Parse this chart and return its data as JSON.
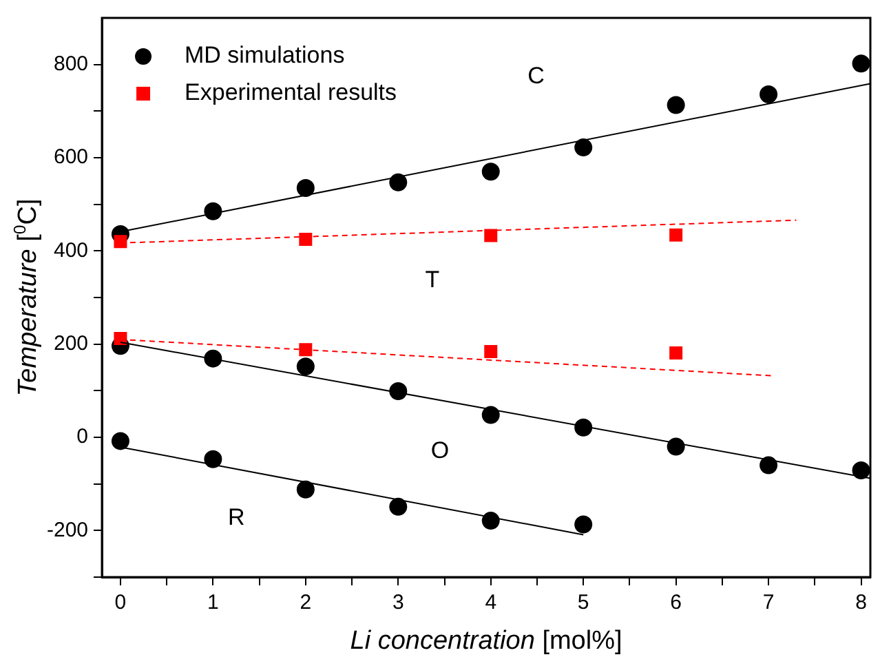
{
  "chart_data": {
    "type": "scatter",
    "xlabel": "Li concentration [mol%]",
    "ylabel": "Temperature [$^{0}$C]",
    "xlim": [
      -0.2,
      8.1
    ],
    "ylim": [
      -300,
      900
    ],
    "xticks": [
      0,
      {
        "value": 0.5,
        "label": null
      },
      1,
      {
        "value": 1.5,
        "label": null
      },
      2,
      {
        "value": 2.5,
        "label": null
      },
      3,
      {
        "value": 3.5,
        "label": null
      },
      4,
      {
        "value": 4.5,
        "label": null
      },
      5,
      {
        "value": 5.5,
        "label": null
      },
      6,
      {
        "value": 6.5,
        "label": null
      },
      7,
      {
        "value": 7.5,
        "label": null
      },
      8
    ],
    "yticks": [
      {
        "value": -300,
        "label": null
      },
      -200,
      {
        "value": -100,
        "label": null
      },
      0,
      {
        "value": 100,
        "label": null
      },
      200,
      {
        "value": 300,
        "label": null
      },
      400,
      {
        "value": 500,
        "label": null
      },
      600,
      {
        "value": 700,
        "label": null
      },
      800
    ],
    "grid": false,
    "legend": "top left",
    "series": [
      {
        "name": "MD simulations",
        "marker": "circle",
        "color": "#000000",
        "x": [
          0,
          1,
          2,
          3,
          4,
          5,
          6,
          7,
          8,
          0,
          1,
          2,
          3,
          4,
          5,
          6,
          7,
          8,
          0,
          1,
          2,
          3,
          4,
          5
        ],
        "values": [
          436,
          485,
          535,
          547,
          570,
          622,
          713,
          736,
          802,
          196,
          169,
          152,
          99,
          48,
          21,
          -20,
          -60,
          -71,
          -8,
          -47,
          -112,
          -149,
          -179,
          -187
        ]
      },
      {
        "name": "Experimental results",
        "marker": "square",
        "color": "#ff0000",
        "x": [
          0,
          2,
          4,
          6,
          0,
          2,
          4,
          6
        ],
        "values": [
          420,
          425,
          433,
          434,
          212,
          188,
          184,
          181
        ]
      },
      {
        "type": "line",
        "marker": "none",
        "line_style": "solid",
        "color": "#000000",
        "x": [
          0,
          8.1
        ],
        "values": [
          441,
          759
        ]
      },
      {
        "type": "line",
        "marker": "none",
        "line_style": "dashed",
        "color": "#ff0000",
        "x": [
          0,
          7.3
        ],
        "values": [
          417,
          466
        ]
      },
      {
        "type": "line",
        "marker": "none",
        "line_style": "dashed",
        "color": "#ff0000",
        "x": [
          0,
          7.05
        ],
        "values": [
          210,
          132
        ]
      },
      {
        "type": "line",
        "marker": "none",
        "line_style": "solid",
        "color": "#000000",
        "x": [
          0,
          8.1
        ],
        "values": [
          204,
          -88
        ]
      },
      {
        "type": "line",
        "marker": "none",
        "line_style": "solid",
        "color": "#000000",
        "x": [
          0,
          5
        ],
        "values": [
          -21,
          -209
        ]
      }
    ],
    "annotations": [
      "C",
      "T",
      "O",
      "R"
    ]
  }
}
